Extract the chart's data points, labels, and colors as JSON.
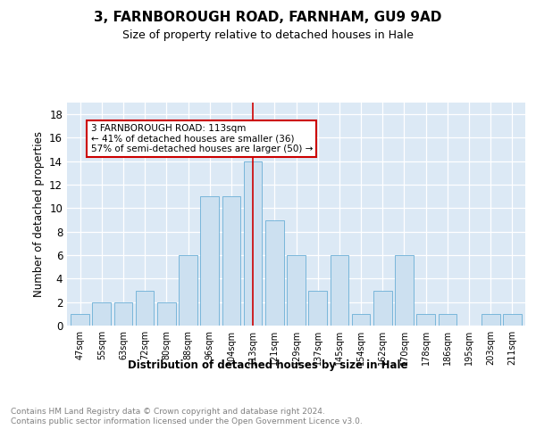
{
  "title": "3, FARNBOROUGH ROAD, FARNHAM, GU9 9AD",
  "subtitle": "Size of property relative to detached houses in Hale",
  "xlabel": "Distribution of detached houses by size in Hale",
  "ylabel": "Number of detached properties",
  "bar_color": "#cce0f0",
  "bar_edge_color": "#6aafd6",
  "bins": [
    "47sqm",
    "55sqm",
    "63sqm",
    "72sqm",
    "80sqm",
    "88sqm",
    "96sqm",
    "104sqm",
    "113sqm",
    "121sqm",
    "129sqm",
    "137sqm",
    "145sqm",
    "154sqm",
    "162sqm",
    "170sqm",
    "178sqm",
    "186sqm",
    "195sqm",
    "203sqm",
    "211sqm"
  ],
  "values": [
    1,
    2,
    2,
    3,
    2,
    6,
    11,
    11,
    14,
    9,
    6,
    3,
    6,
    1,
    3,
    6,
    1,
    1,
    0,
    1,
    1
  ],
  "ylim": [
    0,
    19
  ],
  "yticks": [
    0,
    2,
    4,
    6,
    8,
    10,
    12,
    14,
    16,
    18
  ],
  "vline_index": 8,
  "vline_color": "#cc0000",
  "annotation_text": "3 FARNBOROUGH ROAD: 113sqm\n← 41% of detached houses are smaller (36)\n57% of semi-detached houses are larger (50) →",
  "annotation_box_color": "#ffffff",
  "annotation_box_edge": "#cc0000",
  "footer_text": "Contains HM Land Registry data © Crown copyright and database right 2024.\nContains public sector information licensed under the Open Government Licence v3.0.",
  "bg_color": "#dce9f5",
  "fig_bg": "#ffffff"
}
